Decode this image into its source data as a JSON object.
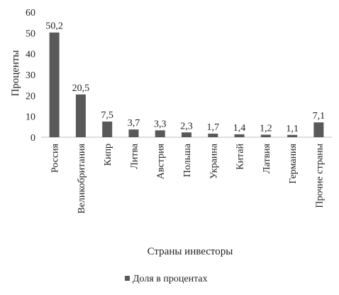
{
  "chart_data": {
    "type": "bar",
    "title": "",
    "xlabel": "Страны инвесторы",
    "ylabel": "Проценты",
    "ylim": [
      0,
      60
    ],
    "yticks": [
      0,
      10,
      20,
      30,
      40,
      50,
      60
    ],
    "grid": false,
    "legend_position": "bottom",
    "categories": [
      "Россия",
      "Великобритания",
      "Кипр",
      "Литва",
      "Австрия",
      "Польша",
      "Украина",
      "Китай",
      "Латвия",
      "Германия",
      "Прочие страны"
    ],
    "series": [
      {
        "name": "Доля в процентах",
        "color": "#595959",
        "values": [
          50.2,
          20.5,
          7.5,
          3.7,
          3.3,
          2.3,
          1.7,
          1.4,
          1.2,
          1.1,
          7.1
        ],
        "labels": [
          "50,2",
          "20,5",
          "7,5",
          "3,7",
          "3,3",
          "2,3",
          "1,7",
          "1,4",
          "1,2",
          "1,1",
          "7,1"
        ]
      }
    ]
  }
}
